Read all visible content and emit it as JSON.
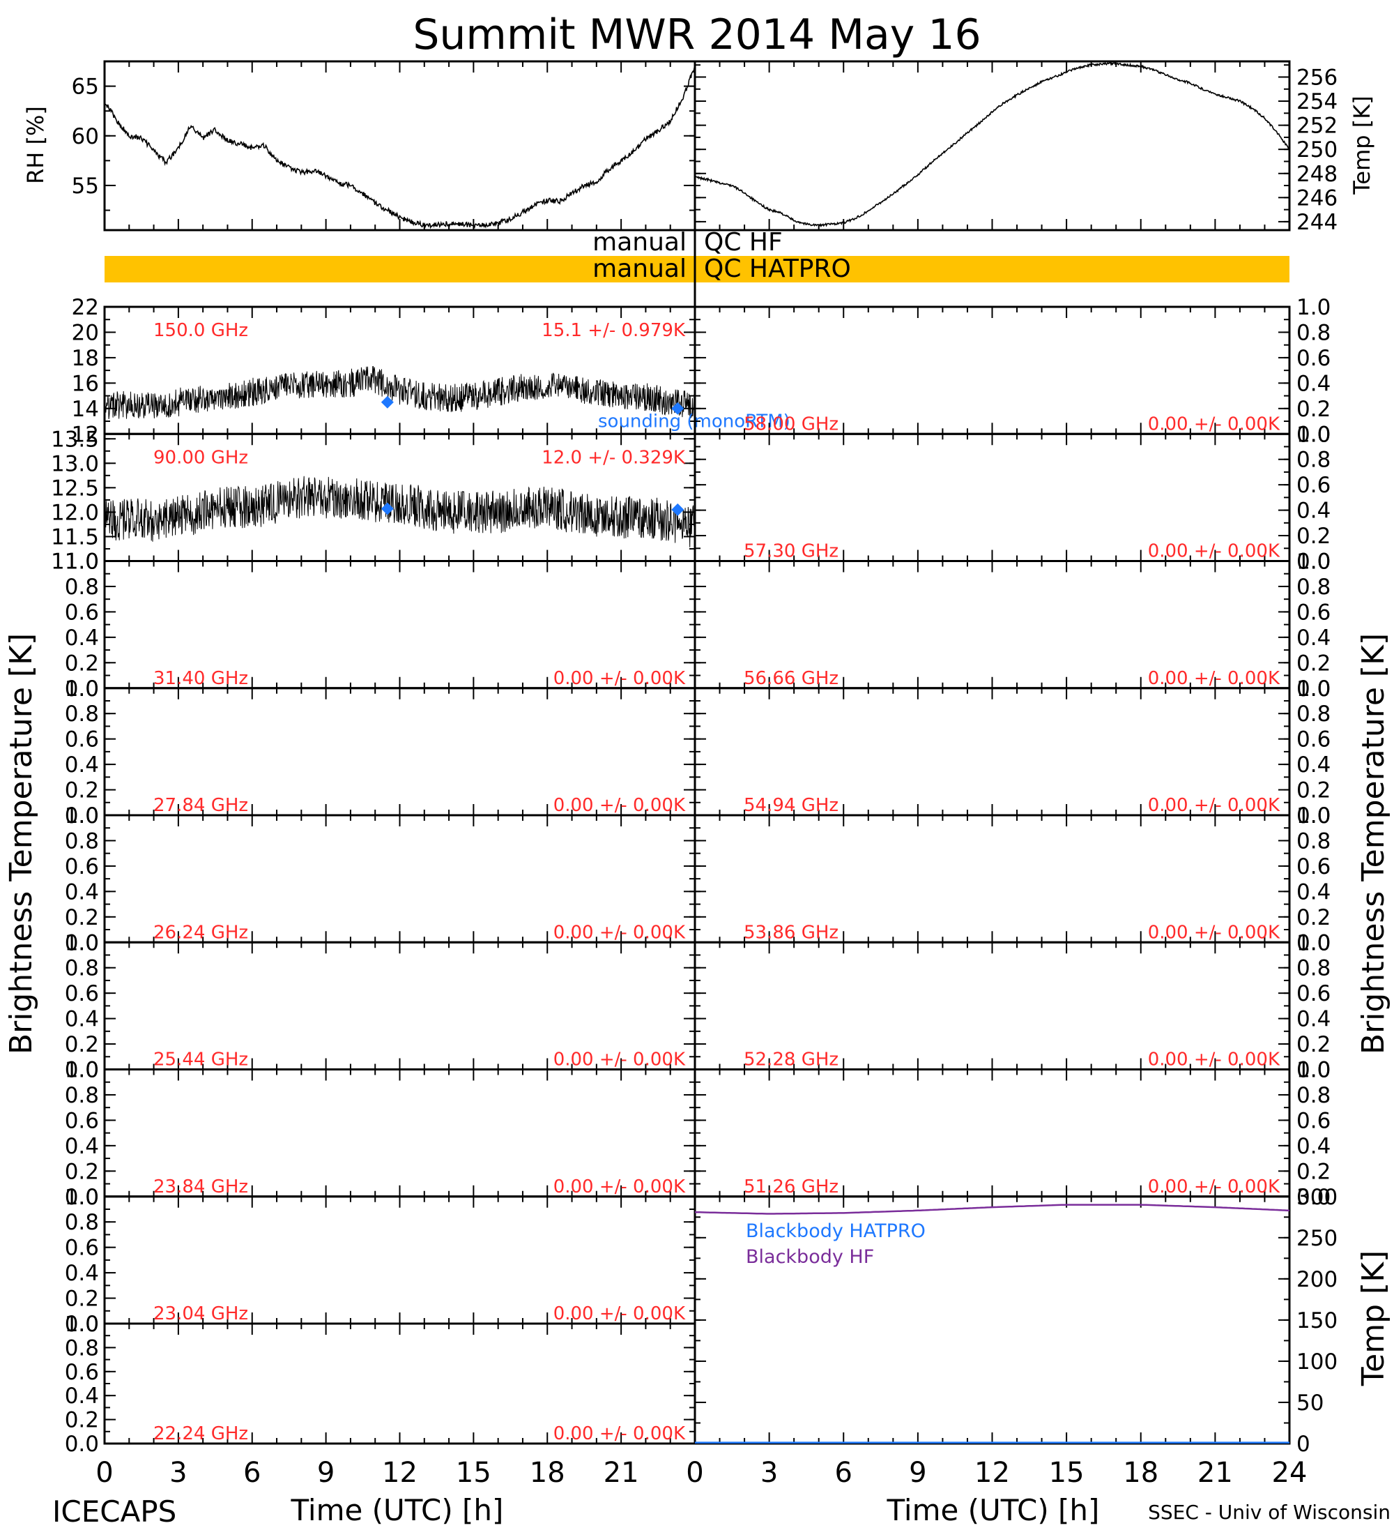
{
  "title": "Summit MWR 2014 May 16",
  "footer_left": "ICECAPS",
  "footer_right": "SSEC - Univ of Wisconsin",
  "colors": {
    "red": "#ff2a2a",
    "blue": "#1e78ff",
    "purple": "#7a2d9a",
    "orange": "#ffc200",
    "black": "#000000"
  },
  "chart_data": [
    {
      "id": "rh",
      "type": "line",
      "xlabel": "",
      "ylabel": "RH [%]",
      "xlim": [
        0,
        24
      ],
      "ylim": [
        50.5,
        67.5
      ],
      "yticks": [
        "55",
        "60",
        "65"
      ],
      "x": [
        0,
        0.5,
        1,
        1.5,
        2,
        2.5,
        3,
        3.5,
        4,
        4.5,
        5,
        5.5,
        6,
        6.5,
        7,
        7.5,
        8,
        8.5,
        9,
        9.5,
        10,
        10.5,
        11,
        11.5,
        12,
        12.5,
        13,
        13.5,
        14,
        14.5,
        15,
        15.5,
        16,
        16.5,
        17,
        17.5,
        18,
        18.5,
        19,
        19.5,
        20,
        20.5,
        21,
        21.5,
        22,
        22.5,
        23,
        23.5,
        24
      ],
      "values": [
        63.5,
        61.5,
        60.0,
        59.8,
        58.5,
        57.3,
        58.8,
        61.0,
        59.8,
        60.6,
        59.5,
        59.2,
        58.8,
        59.0,
        57.5,
        56.8,
        56.3,
        56.5,
        56.0,
        55.2,
        55.0,
        54.2,
        53.2,
        52.5,
        51.8,
        51.3,
        51.0,
        51.0,
        51.2,
        51.1,
        51.0,
        51.0,
        51.2,
        51.6,
        52.3,
        53.0,
        53.5,
        53.4,
        54.2,
        55.0,
        55.4,
        56.6,
        57.5,
        58.4,
        59.7,
        60.5,
        61.5,
        63.8,
        67.0
      ]
    },
    {
      "id": "temp",
      "type": "line",
      "xlabel": "",
      "ylabel": "Temp [K]",
      "xlim": [
        0,
        24
      ],
      "ylim": [
        243.3,
        257.3
      ],
      "yticks": [
        "244",
        "246",
        "248",
        "250",
        "252",
        "254",
        "256"
      ],
      "x": [
        0,
        0.5,
        1,
        1.5,
        2,
        2.5,
        3,
        3.5,
        4,
        4.5,
        5,
        5.5,
        6,
        6.5,
        7,
        7.5,
        8,
        8.5,
        9,
        9.5,
        10,
        10.5,
        11,
        11.5,
        12,
        12.5,
        13,
        13.5,
        14,
        14.5,
        15,
        15.5,
        16,
        16.5,
        17,
        17.5,
        18,
        18.5,
        19,
        19.5,
        20,
        20.5,
        21,
        21.5,
        22,
        22.5,
        23,
        23.5,
        24
      ],
      "values": [
        247.7,
        247.5,
        247.2,
        247.0,
        246.4,
        245.6,
        245.0,
        244.7,
        244.1,
        243.8,
        243.7,
        243.8,
        243.9,
        244.3,
        244.9,
        245.6,
        246.3,
        247.1,
        247.9,
        248.8,
        249.7,
        250.5,
        251.4,
        252.2,
        253.1,
        253.9,
        254.5,
        255.1,
        255.6,
        256.0,
        256.4,
        256.8,
        257.0,
        257.1,
        257.1,
        257.0,
        256.9,
        256.6,
        256.2,
        255.8,
        255.5,
        255.0,
        254.6,
        254.3,
        254.0,
        253.4,
        252.6,
        251.4,
        250.0
      ]
    },
    {
      "id": "qc",
      "type": "flag",
      "rows": [
        {
          "name": "manual",
          "label": "QC HF",
          "flagged": false
        },
        {
          "name": "manual",
          "label": "QC HATPRO",
          "flagged": true,
          "color": "#ffc200"
        }
      ]
    },
    {
      "id": "tb150",
      "type": "line",
      "ylabel": "Brightness Temperature [K]",
      "xlim": [
        0,
        24
      ],
      "ylim": [
        12,
        22
      ],
      "yticks": [
        "12",
        "14",
        "16",
        "18",
        "20",
        "22"
      ],
      "label": "150.0 GHz",
      "stats": "15.1 +/- 0.979K",
      "x": [
        0,
        1,
        2,
        3,
        4,
        5,
        6,
        7,
        8,
        9,
        10,
        11,
        12,
        13,
        14,
        15,
        16,
        17,
        18,
        19,
        20,
        21,
        22,
        23,
        24
      ],
      "values": [
        14.2,
        14.3,
        14.1,
        14.5,
        14.8,
        15.0,
        15.3,
        15.6,
        15.8,
        15.9,
        16.0,
        16.3,
        15.4,
        15.0,
        14.8,
        14.9,
        15.3,
        15.7,
        15.9,
        15.6,
        15.3,
        15.1,
        14.9,
        14.5,
        14.2
      ],
      "spread": 1.4,
      "sounding": {
        "name": "sounding (monoRTM)",
        "x": [
          11.5,
          23.3
        ],
        "values": [
          14.5,
          14.0
        ]
      }
    },
    {
      "id": "tb90",
      "type": "line",
      "xlim": [
        0,
        24
      ],
      "ylim": [
        11,
        13.6
      ],
      "yticks": [
        "11.0",
        "11.5",
        "12.0",
        "12.5",
        "13.0",
        "13.5"
      ],
      "label": "90.00 GHz",
      "stats": "12.0 +/- 0.329K",
      "x": [
        0,
        1,
        2,
        3,
        4,
        5,
        6,
        7,
        8,
        9,
        10,
        11,
        12,
        13,
        14,
        15,
        16,
        17,
        18,
        19,
        20,
        21,
        22,
        23,
        24
      ],
      "values": [
        11.8,
        11.9,
        11.8,
        11.9,
        12.0,
        12.1,
        12.1,
        12.2,
        12.3,
        12.3,
        12.3,
        12.2,
        12.2,
        12.1,
        12.0,
        12.0,
        12.0,
        12.1,
        12.1,
        12.0,
        11.9,
        11.9,
        11.9,
        11.8,
        11.7
      ],
      "spread": 0.55,
      "sounding": {
        "x": [
          11.5,
          23.3
        ],
        "values": [
          12.07,
          12.05
        ]
      }
    },
    {
      "id": "tb3140",
      "type": "line",
      "xlim": [
        0,
        24
      ],
      "ylim": [
        0,
        1
      ],
      "yticks": [
        "0.0",
        "0.2",
        "0.4",
        "0.6",
        "0.8",
        "1.0"
      ],
      "label": "31.40 GHz",
      "stats": "0.00 +/- 0.00K"
    },
    {
      "id": "tb2784",
      "type": "line",
      "xlim": [
        0,
        24
      ],
      "ylim": [
        0,
        1
      ],
      "yticks": [
        "0.0",
        "0.2",
        "0.4",
        "0.6",
        "0.8",
        "1.0"
      ],
      "label": "27.84 GHz",
      "stats": "0.00 +/- 0.00K"
    },
    {
      "id": "tb2624",
      "type": "line",
      "xlim": [
        0,
        24
      ],
      "ylim": [
        0,
        1
      ],
      "yticks": [
        "0.0",
        "0.2",
        "0.4",
        "0.6",
        "0.8",
        "1.0"
      ],
      "label": "26.24 GHz",
      "stats": "0.00 +/- 0.00K"
    },
    {
      "id": "tb2544",
      "type": "line",
      "xlim": [
        0,
        24
      ],
      "ylim": [
        0,
        1
      ],
      "yticks": [
        "0.0",
        "0.2",
        "0.4",
        "0.6",
        "0.8",
        "1.0"
      ],
      "label": "25.44 GHz",
      "stats": "0.00 +/- 0.00K"
    },
    {
      "id": "tb2384",
      "type": "line",
      "xlim": [
        0,
        24
      ],
      "ylim": [
        0,
        1
      ],
      "yticks": [
        "0.0",
        "0.2",
        "0.4",
        "0.6",
        "0.8",
        "1.0"
      ],
      "label": "23.84 GHz",
      "stats": "0.00 +/- 0.00K"
    },
    {
      "id": "tb2304",
      "type": "line",
      "xlim": [
        0,
        24
      ],
      "ylim": [
        0,
        1
      ],
      "yticks": [
        "0.0",
        "0.2",
        "0.4",
        "0.6",
        "0.8",
        "1.0"
      ],
      "label": "23.04 GHz",
      "stats": "0.00 +/- 0.00K"
    },
    {
      "id": "tb2224",
      "type": "line",
      "xlim": [
        0,
        24
      ],
      "ylim": [
        0,
        1
      ],
      "yticks": [
        "0.0",
        "0.2",
        "0.4",
        "0.6",
        "0.8",
        "1.0"
      ],
      "label": "22.24 GHz",
      "stats": "0.00 +/- 0.00K",
      "xlabel": "Time (UTC) [h]",
      "xticks": [
        "0",
        "3",
        "6",
        "9",
        "12",
        "15",
        "18",
        "21"
      ]
    },
    {
      "id": "tb5800",
      "type": "line",
      "xlim": [
        0,
        24
      ],
      "ylim": [
        0,
        1
      ],
      "yticks": [
        "0.0",
        "0.2",
        "0.4",
        "0.6",
        "0.8",
        "1.0"
      ],
      "label": "58.00 GHz",
      "stats": "0.00 +/- 0.00K"
    },
    {
      "id": "tb5730",
      "type": "line",
      "xlim": [
        0,
        24
      ],
      "ylim": [
        0,
        1
      ],
      "yticks": [
        "0.0",
        "0.2",
        "0.4",
        "0.6",
        "0.8",
        "1.0"
      ],
      "label": "57.30 GHz",
      "stats": "0.00 +/- 0.00K"
    },
    {
      "id": "tb5666",
      "type": "line",
      "xlim": [
        0,
        24
      ],
      "ylim": [
        0,
        1
      ],
      "yticks": [
        "0.0",
        "0.2",
        "0.4",
        "0.6",
        "0.8",
        "1.0"
      ],
      "label": "56.66 GHz",
      "stats": "0.00 +/- 0.00K"
    },
    {
      "id": "tb5494",
      "type": "line",
      "xlim": [
        0,
        24
      ],
      "ylim": [
        0,
        1
      ],
      "yticks": [
        "0.0",
        "0.2",
        "0.4",
        "0.6",
        "0.8",
        "1.0"
      ],
      "label": "54.94 GHz",
      "stats": "0.00 +/- 0.00K"
    },
    {
      "id": "tb5386",
      "type": "line",
      "xlim": [
        0,
        24
      ],
      "ylim": [
        0,
        1
      ],
      "yticks": [
        "0.0",
        "0.2",
        "0.4",
        "0.6",
        "0.8",
        "1.0"
      ],
      "label": "53.86 GHz",
      "stats": "0.00 +/- 0.00K"
    },
    {
      "id": "tb5228",
      "type": "line",
      "xlim": [
        0,
        24
      ],
      "ylim": [
        0,
        1
      ],
      "yticks": [
        "0.0",
        "0.2",
        "0.4",
        "0.6",
        "0.8",
        "1.0"
      ],
      "label": "52.28 GHz",
      "stats": "0.00 +/- 0.00K"
    },
    {
      "id": "tb5126",
      "type": "line",
      "xlim": [
        0,
        24
      ],
      "ylim": [
        0,
        1
      ],
      "yticks": [
        "0.0",
        "0.2",
        "0.4",
        "0.6",
        "0.8",
        "1.0"
      ],
      "label": "51.26 GHz",
      "stats": "0.00 +/- 0.00K"
    },
    {
      "id": "blackbody",
      "type": "line",
      "ylabel": "Temp [K]",
      "xlabel": "Time (UTC) [h]",
      "xlim": [
        0,
        24
      ],
      "ylim": [
        0,
        300
      ],
      "yticks": [
        "0",
        "50",
        "100",
        "150",
        "200",
        "250",
        "300"
      ],
      "xticks": [
        "0",
        "3",
        "6",
        "9",
        "12",
        "15",
        "18",
        "21",
        "24"
      ],
      "series": [
        {
          "name": "Blackbody HATPRO",
          "color": "#1e78ff",
          "x": [
            0,
            24
          ],
          "values": [
            0,
            0
          ]
        },
        {
          "name": "Blackbody HF",
          "color": "#7a2d9a",
          "x": [
            0,
            3,
            6,
            9,
            12,
            15,
            18,
            21,
            24
          ],
          "values": [
            281,
            279,
            280,
            283,
            287,
            290,
            290,
            287,
            283
          ]
        }
      ]
    }
  ]
}
